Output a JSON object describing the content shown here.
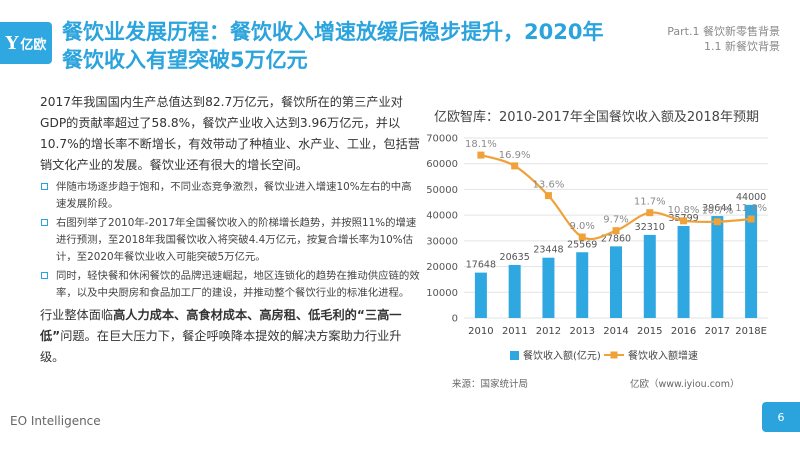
{
  "header": {
    "logo_text": "亿欧",
    "title": "餐饮业发展历程：餐饮收入增速放缓后稳步提升，2020年餐饮收入有望突破5万亿元",
    "crumb_line1": "Part.1  餐饮新零售背景",
    "crumb_line2": "1.1 新餐饮背景"
  },
  "body": {
    "intro": "2017年我国国内生产总值达到82.7万亿元，餐饮所在的第三产业对GDP的贡献率超过了58.8%，餐饮产业收入达到3.96万亿元，并以10.7%的增长率不断增长，有效带动了种植业、水产业、工业，包括营销文化产业的发展。餐饮业还有很大的增长空间。",
    "bullets": [
      "伴随市场逐步趋于饱和，不同业态竞争激烈，餐饮业进入增速10%左右的中高速发展阶段。",
      "右图列举了2010年-2017年全国餐饮收入的阶梯增长趋势，并按照11%的增速进行预测，至2018年我国餐饮收入将突破4.4万亿元，按复合增长率为10%估计，至2020年餐饮业收入可能突破5万亿元。",
      "同时，轻快餐和休闲餐饮的品牌迅速崛起，地区连锁化的趋势在推动供应链的效率，以及中央厨房和食品加工厂的建设，并推动整个餐饮行业的标准化进程。"
    ],
    "closing_pre": "行业整体面临",
    "closing_bold": "高人力成本、高食材成本、高房租、低毛利的“三高一低”",
    "closing_post": "问题。在巨大压力下，餐企呼唤降本提效的解决方案助力行业升级。"
  },
  "chart_title": "亿欧智库：2010-2017年全国餐饮收入额及2018年预期",
  "chart_data": {
    "type": "bar",
    "categories": [
      "2010",
      "2011",
      "2012",
      "2013",
      "2014",
      "2015",
      "2016",
      "2017",
      "2018E"
    ],
    "series": [
      {
        "name": "餐饮收入额(亿元)",
        "type": "bar",
        "axis": "left",
        "values": [
          17648,
          20635,
          23448,
          25569,
          27860,
          32310,
          35799,
          39644,
          44000
        ]
      },
      {
        "name": "餐饮收入额增速",
        "type": "line",
        "axis": "right",
        "values": [
          18.1,
          16.9,
          13.6,
          9.0,
          9.7,
          11.7,
          10.8,
          10.7,
          11.0
        ],
        "labels": [
          "18.1%",
          "16.9%",
          "13.6%",
          "9.0%",
          "9.7%",
          "11.7%",
          "10.8%",
          "10.7%",
          "11.0%"
        ]
      }
    ],
    "y_ticks": [
      "70000",
      "60000",
      "50000",
      "40000",
      "30000",
      "20000",
      "10000",
      "0"
    ],
    "ylim": [
      0,
      70000
    ],
    "ylim_right": [
      0,
      20
    ],
    "legend_position": "bottom",
    "colors": {
      "bar": "#2fa7e0",
      "line": "#f0a23a",
      "line_label": "#8a8a8a",
      "bar_label": "#555555",
      "grid": "#e3e3e3"
    },
    "grid": true
  },
  "source_left": "来源：国家统计局",
  "source_right": "亿欧（www.iyiou.com）",
  "footer": {
    "brand": "EO Intelligence",
    "page": "6"
  }
}
